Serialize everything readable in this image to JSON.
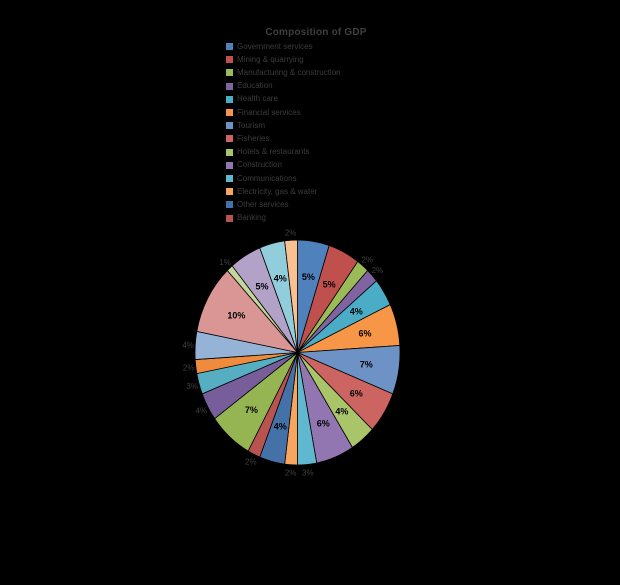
{
  "title": "Composition of GDP",
  "colors": {
    "background": "#000000",
    "title_text": "#3f3f3f",
    "legend_text": "#3c3c3c",
    "inside_label": "#000000",
    "outside_label": "#3f3f3f",
    "slice_border": "#000000"
  },
  "chart_data": {
    "type": "pie",
    "title": "Composition of GDP",
    "legend_position": "top-left-column",
    "start_angle": "12-oclock-clockwise",
    "slices": [
      {
        "pct": "5%",
        "value": 5,
        "color": "#4F81BD",
        "label_outside": false
      },
      {
        "pct": "5%",
        "value": 5,
        "color": "#C0504D",
        "label_outside": false
      },
      {
        "pct": "2%",
        "value": 2,
        "color": "#9BBB59",
        "label_outside": true
      },
      {
        "pct": "2%",
        "value": 2,
        "color": "#8064A2",
        "label_outside": true
      },
      {
        "pct": "4%",
        "value": 4,
        "color": "#4BACC6",
        "label_outside": false
      },
      {
        "pct": "6%",
        "value": 6,
        "color": "#F79646",
        "label_outside": false
      },
      {
        "pct": "7%",
        "value": 7,
        "color": "#6D92C5",
        "label_outside": false
      },
      {
        "pct": "6%",
        "value": 6,
        "color": "#CC6461",
        "label_outside": false
      },
      {
        "pct": "4%",
        "value": 4,
        "color": "#AAC46A",
        "label_outside": false
      },
      {
        "pct": "6%",
        "value": 6,
        "color": "#9176B1",
        "label_outside": false
      },
      {
        "pct": "3%",
        "value": 3,
        "color": "#5FB8CF",
        "label_outside": true
      },
      {
        "pct": "2%",
        "value": 2,
        "color": "#F8A55F",
        "label_outside": true
      },
      {
        "pct": "4%",
        "value": 4,
        "color": "#4472A8",
        "label_outside": false
      },
      {
        "pct": "2%",
        "value": 2,
        "color": "#B8534F",
        "label_outside": true
      },
      {
        "pct": "7%",
        "value": 7,
        "color": "#95B552",
        "label_outside": false
      },
      {
        "pct": "4%",
        "value": 4,
        "color": "#775E9A",
        "label_outside": true
      },
      {
        "pct": "3%",
        "value": 3,
        "color": "#56AEC2",
        "label_outside": true
      },
      {
        "pct": "2%",
        "value": 2,
        "color": "#EE8B3C",
        "label_outside": true
      },
      {
        "pct": "4%",
        "value": 4,
        "color": "#95B3D7",
        "label_outside": true
      },
      {
        "pct": "10%",
        "value": 10,
        "color": "#D99694",
        "label_outside": false
      },
      {
        "pct": "1%",
        "value": 1,
        "color": "#C3D69B",
        "label_outside": true
      },
      {
        "pct": "5%",
        "value": 5,
        "color": "#B3A2C7",
        "label_outside": false
      },
      {
        "pct": "4%",
        "value": 4,
        "color": "#92CDDC",
        "label_outside": false
      },
      {
        "pct": "2%",
        "value": 2,
        "color": "#FAC08F",
        "label_outside": true
      }
    ],
    "legend": [
      {
        "label": "Government services",
        "color": "#4F81BD"
      },
      {
        "label": "Mining & quarrying",
        "color": "#C0504D"
      },
      {
        "label": "Manufacturing & construction",
        "color": "#9BBB59"
      },
      {
        "label": "Education",
        "color": "#8064A2"
      },
      {
        "label": "Health care",
        "color": "#4BACC6"
      },
      {
        "label": "Financial services",
        "color": "#F79646"
      },
      {
        "label": "Tourism",
        "color": "#6D92C5"
      },
      {
        "label": "Fisheries",
        "color": "#CC6461"
      },
      {
        "label": "Hotels & restaurants",
        "color": "#AAC46A"
      },
      {
        "label": "Construction",
        "color": "#9176B1"
      },
      {
        "label": "Communications",
        "color": "#5FB8CF"
      },
      {
        "label": "Electricity, gas & water",
        "color": "#F8A55F"
      },
      {
        "label": "Other services",
        "color": "#4472A8"
      },
      {
        "label": "Banking",
        "color": "#B8534F"
      }
    ]
  }
}
